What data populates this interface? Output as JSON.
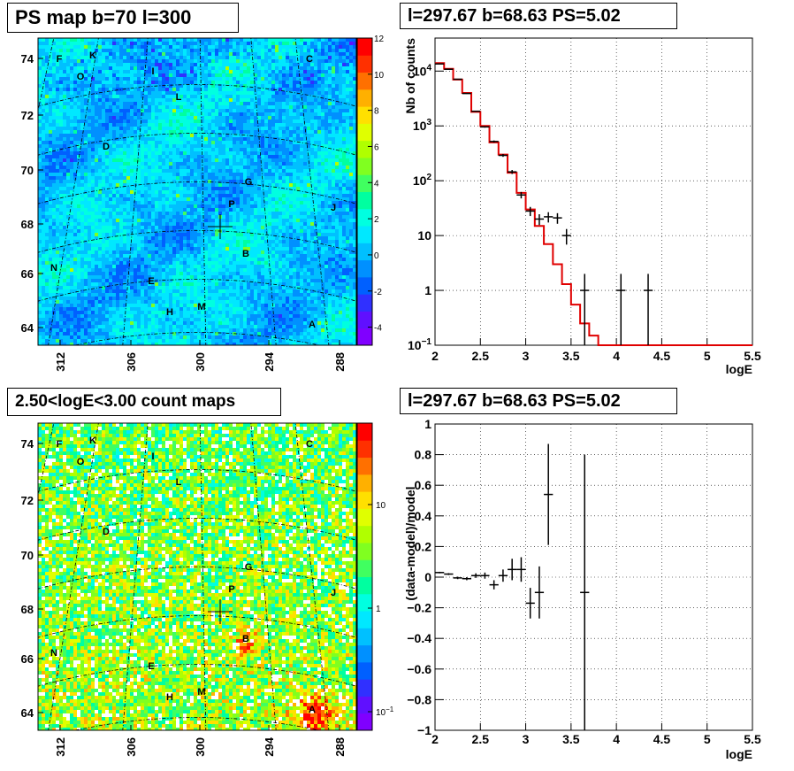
{
  "chart_data": [
    {
      "id": "ps-map",
      "type": "heatmap",
      "title": "PS map b=70 l=300",
      "y_ticks": [
        "64",
        "66",
        "68",
        "70",
        "72",
        "74"
      ],
      "x_ticks": [
        "312",
        "306",
        "300",
        "294",
        "288"
      ],
      "colorbar_ticks": [
        "-4",
        "-2",
        "0",
        "2",
        "4",
        "6",
        "8",
        "10",
        "12"
      ],
      "colorbar_range": [
        -5,
        12
      ],
      "source_labels": [
        "F",
        "K",
        "O",
        "I",
        "C",
        "L",
        "D",
        "G",
        "P",
        "J",
        "B",
        "N",
        "E",
        "M",
        "H",
        "A"
      ],
      "marker": "cross"
    },
    {
      "id": "spectrum",
      "type": "line",
      "title": "l=297.67 b=68.63 PS=5.02",
      "xlabel": "logE",
      "ylabel": "Nb of counts",
      "xlim": [
        2,
        5.5
      ],
      "ylim": [
        0.1,
        40000
      ],
      "yscale": "log",
      "grid": true,
      "x_ticks": [
        "2",
        "2.5",
        "3",
        "3.5",
        "4",
        "4.5",
        "5",
        "5.5"
      ],
      "y_ticks": [
        {
          "value": 0.1,
          "label": "10",
          "sup": "−1"
        },
        {
          "value": 1,
          "label": "1",
          "sup": ""
        },
        {
          "value": 10,
          "label": "10",
          "sup": ""
        },
        {
          "value": 100,
          "label": "10",
          "sup": "2"
        },
        {
          "value": 1000,
          "label": "10",
          "sup": "3"
        },
        {
          "value": 10000,
          "label": "10",
          "sup": "4"
        }
      ],
      "model": {
        "bin_width": 0.1,
        "bin_starts": [
          2.0,
          2.1,
          2.2,
          2.3,
          2.4,
          2.5,
          2.6,
          2.7,
          2.8,
          2.9,
          3.0,
          3.1,
          3.2,
          3.3,
          3.4,
          3.5,
          3.6,
          3.7,
          3.8,
          3.9,
          4.0,
          4.1,
          4.2,
          4.3,
          4.4,
          4.5,
          4.6,
          4.7,
          4.8,
          4.9,
          5.0,
          5.1,
          5.2,
          5.3,
          5.4
        ],
        "values": [
          14000,
          11000,
          7000,
          4000,
          1800,
          1000,
          500,
          300,
          140,
          60,
          30,
          15,
          7,
          3,
          1.3,
          0.55,
          0.25,
          0.15,
          0.1,
          0.1,
          0.1,
          0.1,
          0.1,
          0.1,
          0.1,
          0.1,
          0.1,
          0.1,
          0.1,
          0.1,
          0.1,
          0.1,
          0.1,
          0.1,
          0.1
        ]
      },
      "data_points": [
        {
          "x": 2.05,
          "y": 13500
        },
        {
          "x": 2.15,
          "y": 10800
        },
        {
          "x": 2.25,
          "y": 7100
        },
        {
          "x": 2.35,
          "y": 3900
        },
        {
          "x": 2.45,
          "y": 1850
        },
        {
          "x": 2.55,
          "y": 960
        },
        {
          "x": 2.65,
          "y": 520
        },
        {
          "x": 2.75,
          "y": 290
        },
        {
          "x": 2.85,
          "y": 145
        },
        {
          "x": 2.95,
          "y": 55
        },
        {
          "x": 3.05,
          "y": 28
        },
        {
          "x": 3.15,
          "y": 20
        },
        {
          "x": 3.25,
          "y": 22
        },
        {
          "x": 3.35,
          "y": 21
        },
        {
          "x": 3.45,
          "y": 10
        },
        {
          "x": 3.65,
          "y": 1
        },
        {
          "x": 4.05,
          "y": 1
        },
        {
          "x": 4.35,
          "y": 1
        }
      ]
    },
    {
      "id": "count-map",
      "type": "heatmap",
      "title": "2.50<logE<3.00 count maps",
      "y_ticks": [
        "64",
        "66",
        "68",
        "70",
        "72",
        "74"
      ],
      "x_ticks": [
        "312",
        "306",
        "300",
        "294",
        "288"
      ],
      "colorbar_scale": "log",
      "colorbar_ticks": [
        {
          "label": "10",
          "sup": "−1"
        },
        {
          "label": "1",
          "sup": ""
        },
        {
          "label": "10",
          "sup": ""
        }
      ],
      "source_labels": [
        "F",
        "K",
        "O",
        "I",
        "C",
        "L",
        "D",
        "G",
        "P",
        "J",
        "B",
        "N",
        "E",
        "M",
        "H",
        "A"
      ]
    },
    {
      "id": "residuals",
      "type": "scatter",
      "title": "l=297.67 b=68.63 PS=5.02",
      "xlabel": "logE",
      "ylabel": "(data-model)/model",
      "xlim": [
        2,
        5.5
      ],
      "ylim": [
        -1,
        1
      ],
      "grid": true,
      "x_ticks": [
        "2",
        "2.5",
        "3",
        "3.5",
        "4",
        "4.5",
        "5",
        "5.5"
      ],
      "y_ticks": [
        "−1",
        "−0.8",
        "−0.6",
        "−0.4",
        "−0.2",
        "0",
        "0.2",
        "0.4",
        "0.6",
        "0.8",
        "1"
      ],
      "points": [
        {
          "x": 2.05,
          "y": 0.03,
          "err": 0.005
        },
        {
          "x": 2.15,
          "y": 0.02,
          "err": 0.006
        },
        {
          "x": 2.25,
          "y": -0.005,
          "err": 0.008
        },
        {
          "x": 2.35,
          "y": -0.01,
          "err": 0.01
        },
        {
          "x": 2.45,
          "y": 0.01,
          "err": 0.015
        },
        {
          "x": 2.55,
          "y": 0.01,
          "err": 0.02
        },
        {
          "x": 2.65,
          "y": -0.05,
          "err": 0.03
        },
        {
          "x": 2.75,
          "y": 0.01,
          "err": 0.04
        },
        {
          "x": 2.85,
          "y": 0.05,
          "err": 0.07
        },
        {
          "x": 2.95,
          "y": 0.05,
          "err": 0.08
        },
        {
          "x": 3.05,
          "y": -0.17,
          "err": 0.1
        },
        {
          "x": 3.15,
          "y": -0.1,
          "err": 0.17
        },
        {
          "x": 3.25,
          "y": 0.54,
          "err": 0.33
        },
        {
          "x": 3.65,
          "y": -0.1,
          "err": 0.9
        }
      ]
    }
  ]
}
